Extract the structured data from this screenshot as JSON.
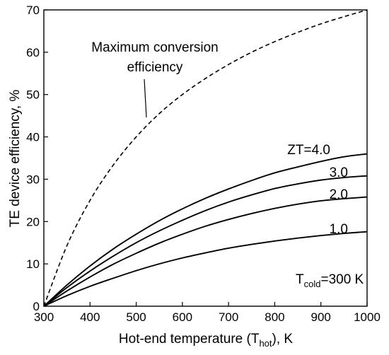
{
  "chart_data": {
    "type": "line",
    "title": "",
    "xlabel": "Hot-end temperature (T",
    "xlabel_sub": "hot",
    "xlabel_end": "), K",
    "ylabel": "TE device efficiency, %",
    "xlim": [
      300,
      1000
    ],
    "ylim": [
      0,
      70
    ],
    "x_ticks": [
      300,
      400,
      500,
      600,
      700,
      800,
      900,
      1000
    ],
    "y_ticks": [
      0,
      10,
      20,
      30,
      40,
      50,
      60,
      70
    ],
    "grid": false,
    "x": [
      300,
      350,
      400,
      450,
      500,
      550,
      600,
      650,
      700,
      750,
      800,
      850,
      900,
      950,
      1000
    ],
    "series": [
      {
        "name": "Maximum conversion efficiency",
        "style": "dashed",
        "values": [
          0,
          14.3,
          25.0,
          33.3,
          40.0,
          45.5,
          50.0,
          53.8,
          57.1,
          60.0,
          62.5,
          64.7,
          66.7,
          68.4,
          70.0
        ]
      },
      {
        "name": "ZT=4.0",
        "style": "solid",
        "values": [
          0,
          5.0,
          9.5,
          13.5,
          17.0,
          20.2,
          23.0,
          25.5,
          27.7,
          29.7,
          31.5,
          32.9,
          34.2,
          35.3,
          36.0
        ]
      },
      {
        "name": "3.0",
        "style": "solid",
        "values": [
          0,
          4.4,
          8.3,
          11.8,
          15.0,
          17.8,
          20.3,
          22.6,
          24.6,
          26.3,
          27.8,
          28.9,
          29.8,
          30.4,
          30.8
        ]
      },
      {
        "name": "2.0",
        "style": "solid",
        "values": [
          0,
          3.6,
          6.9,
          9.9,
          12.5,
          14.9,
          17.0,
          18.9,
          20.5,
          21.9,
          23.1,
          24.1,
          24.9,
          25.4,
          25.8
        ]
      },
      {
        "name": "1.0",
        "style": "solid",
        "values": [
          0,
          2.5,
          4.7,
          6.6,
          8.4,
          10.0,
          11.4,
          12.6,
          13.7,
          14.6,
          15.4,
          16.1,
          16.7,
          17.2,
          17.6
        ]
      }
    ],
    "annotations": {
      "max_label_line1": "Maximum conversion",
      "max_label_line2": "efficiency",
      "tcold_prefix": "T",
      "tcold_sub": "cold",
      "tcold_suffix": "=300 K"
    }
  }
}
